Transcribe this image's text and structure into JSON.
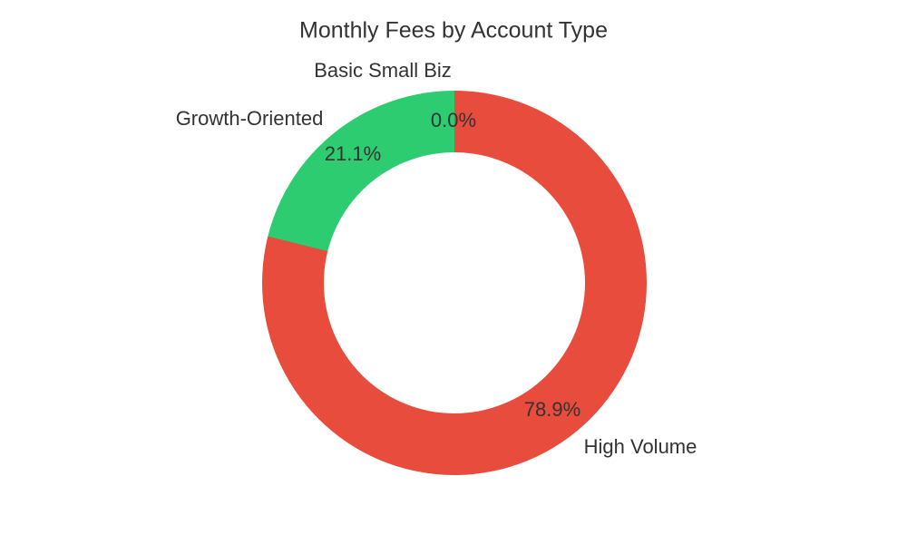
{
  "chart_data": {
    "type": "pie",
    "subtype": "donut",
    "title": "Monthly Fees by Account Type",
    "hole_ratio": 0.68,
    "start_angle_deg": 0,
    "direction": "clockwise",
    "legend": false,
    "background_color": "#ffffff",
    "text_color": "#333333",
    "categories": [
      "High Volume",
      "Growth-Oriented",
      "Basic Small Biz"
    ],
    "values": [
      78.9,
      21.1,
      0.0
    ],
    "value_unit": "% of monthly fees",
    "slices": [
      {
        "label": "High Volume",
        "pct": 78.9,
        "pct_label": "78.9%",
        "color": "#e74c3c"
      },
      {
        "label": "Growth-Oriented",
        "pct": 21.1,
        "pct_label": "21.1%",
        "color": "#2ecc71"
      },
      {
        "label": "Basic Small Biz",
        "pct": 0.0,
        "pct_label": "0.0%",
        "color": null
      }
    ]
  }
}
